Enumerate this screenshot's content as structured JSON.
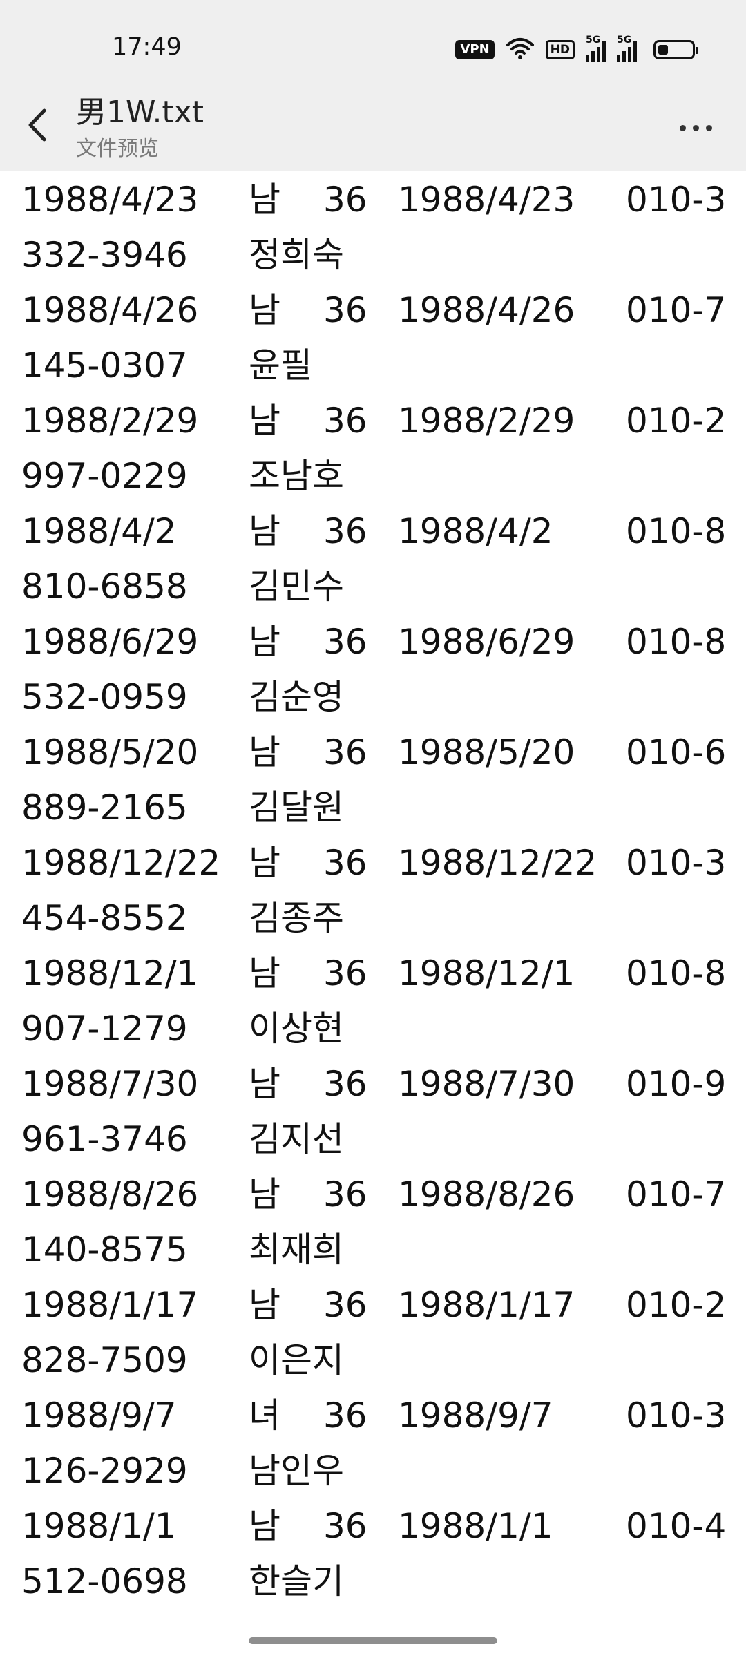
{
  "status_bar": {
    "time": "17:49",
    "vpn": "VPN",
    "hd": "HD",
    "signal1": "5G",
    "signal2": "5G",
    "battery_level": 0.3
  },
  "header": {
    "title": "男1W.txt",
    "subtitle": "文件预览"
  },
  "records": [
    {
      "date": "1988/4/23",
      "gender": "남",
      "age": "36",
      "date2": "1988/4/23",
      "phone_a": "010-3",
      "phone_b": "332-3946",
      "name": "정희숙"
    },
    {
      "date": "1988/4/26",
      "gender": "남",
      "age": "36",
      "date2": "1988/4/26",
      "phone_a": "010-7",
      "phone_b": "145-0307",
      "name": "윤필"
    },
    {
      "date": "1988/2/29",
      "gender": "남",
      "age": "36",
      "date2": "1988/2/29",
      "phone_a": "010-2",
      "phone_b": "997-0229",
      "name": "조남호"
    },
    {
      "date": "1988/4/2",
      "gender": "남",
      "age": "36",
      "date2": "1988/4/2",
      "phone_a": "010-8",
      "phone_b": "810-6858",
      "name": "김민수"
    },
    {
      "date": "1988/6/29",
      "gender": "남",
      "age": "36",
      "date2": "1988/6/29",
      "phone_a": "010-8",
      "phone_b": "532-0959",
      "name": "김순영"
    },
    {
      "date": "1988/5/20",
      "gender": "남",
      "age": "36",
      "date2": "1988/5/20",
      "phone_a": "010-6",
      "phone_b": "889-2165",
      "name": "김달원"
    },
    {
      "date": "1988/12/22",
      "gender": "남",
      "age": "36",
      "date2": "1988/12/22",
      "phone_a": "010-3",
      "phone_b": "454-8552",
      "name": "김종주"
    },
    {
      "date": "1988/12/1",
      "gender": "남",
      "age": "36",
      "date2": "1988/12/1",
      "phone_a": "010-8",
      "phone_b": "907-1279",
      "name": "이상현"
    },
    {
      "date": "1988/7/30",
      "gender": "남",
      "age": "36",
      "date2": "1988/7/30",
      "phone_a": "010-9",
      "phone_b": "961-3746",
      "name": "김지선"
    },
    {
      "date": "1988/8/26",
      "gender": "남",
      "age": "36",
      "date2": "1988/8/26",
      "phone_a": "010-7",
      "phone_b": "140-8575",
      "name": "최재희"
    },
    {
      "date": "1988/1/17",
      "gender": "남",
      "age": "36",
      "date2": "1988/1/17",
      "phone_a": "010-2",
      "phone_b": "828-7509",
      "name": "이은지"
    },
    {
      "date": "1988/9/7",
      "gender": "녀",
      "age": "36",
      "date2": "1988/9/7",
      "phone_a": "010-3",
      "phone_b": "126-2929",
      "name": "남인우"
    },
    {
      "date": "1988/1/1",
      "gender": "남",
      "age": "36",
      "date2": "1988/1/1",
      "phone_a": "010-4",
      "phone_b": "512-0698",
      "name": "한슬기"
    }
  ]
}
